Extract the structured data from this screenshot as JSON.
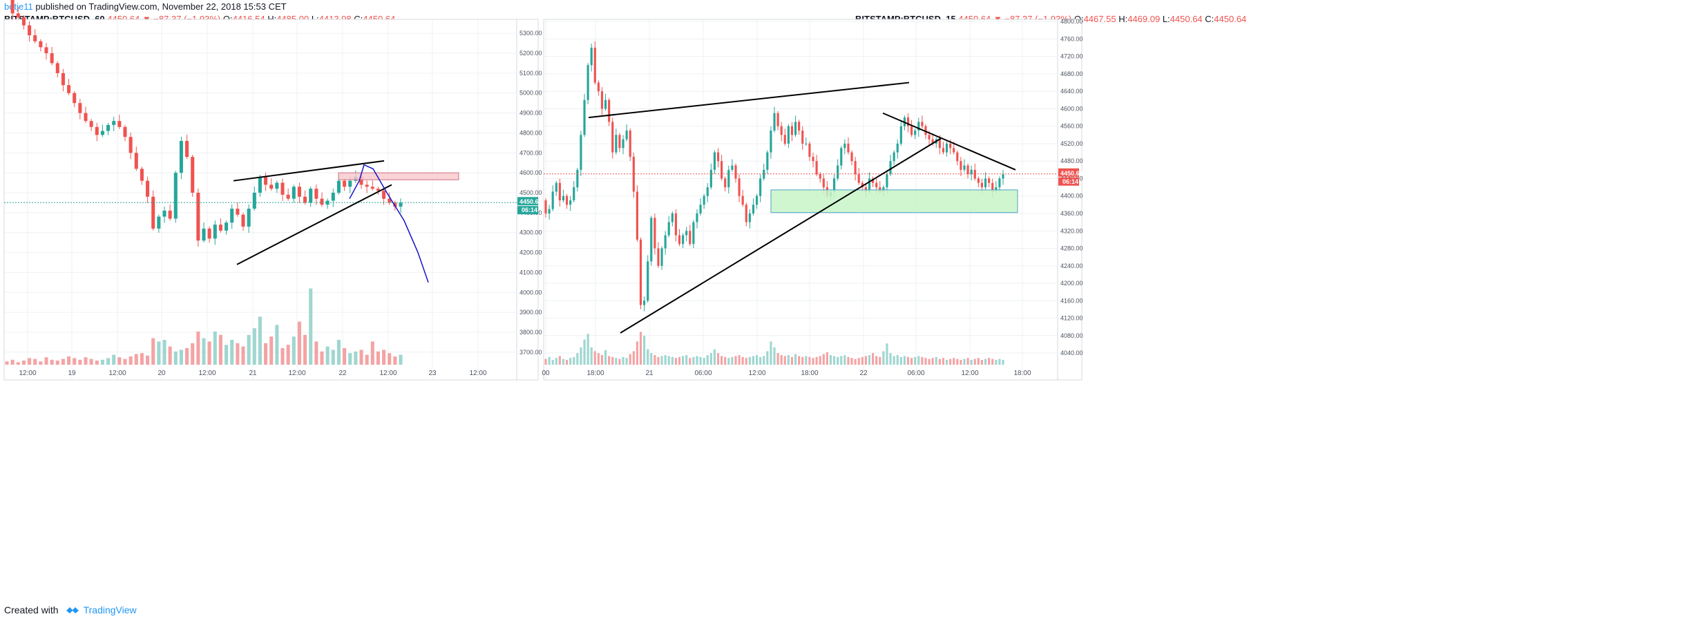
{
  "header": {
    "user": "botje11",
    "published": "published on TradingView.com, November 22, 2018 15:53 CET"
  },
  "footer": {
    "created_with": "Created with",
    "brand": "TradingView"
  },
  "colors": {
    "up": "#26a69a",
    "down": "#ef5350",
    "vol_up": "#9fd6d0",
    "vol_down": "#f4a3a4",
    "path": "#1414c8",
    "trendline": "#000000"
  },
  "chart_data": [
    {
      "type": "candlestick",
      "symbol": "BITSTAMP:BTCUSD, 60",
      "change": "4450.64 ▼ −87.37 (−1.93%)",
      "ohlc": {
        "O": "4416.54",
        "H": "4485.00",
        "L": "4413.98",
        "C": "4450.64"
      },
      "last_price": "4450.64",
      "countdown": "06:14",
      "ylim": [
        3630,
        5370
      ],
      "y_ticks": [
        "5300.00",
        "5200.00",
        "5100.00",
        "5000.00",
        "4900.00",
        "4800.00",
        "4700.00",
        "4600.00",
        "4500.00",
        "4400.00",
        "4300.00",
        "4200.00",
        "4100.00",
        "4000.00",
        "3900.00",
        "3800.00",
        "3700.00"
      ],
      "x_ticks": [
        "12:00",
        "19",
        "12:00",
        "20",
        "12:00",
        "21",
        "12:00",
        "22",
        "12:00",
        "23",
        "12:00"
      ],
      "price_open": 5560,
      "closes": [
        5500,
        5400,
        5380,
        5340,
        5290,
        5260,
        5230,
        5200,
        5150,
        5100,
        5040,
        5000,
        4950,
        4900,
        4860,
        4830,
        4790,
        4810,
        4840,
        4860,
        4830,
        4780,
        4700,
        4620,
        4560,
        4480,
        4320,
        4380,
        4410,
        4370,
        4600,
        4760,
        4680,
        4500,
        4260,
        4320,
        4270,
        4340,
        4310,
        4350,
        4420,
        4390,
        4330,
        4420,
        4500,
        4580,
        4540,
        4520,
        4550,
        4490,
        4470,
        4530,
        4480,
        4450,
        4520,
        4470,
        4440,
        4460,
        4500,
        4560,
        4530,
        4560,
        4580,
        4540,
        4530,
        4520,
        4510,
        4470,
        4450,
        4430,
        4450
      ],
      "volume_level": [
        0.4,
        0.6,
        0.3,
        0.5,
        0.8,
        0.7,
        0.4,
        0.9,
        0.6,
        0.5,
        0.7,
        1.0,
        0.8,
        0.6,
        0.9,
        0.7,
        0.5,
        0.6,
        0.8,
        1.2,
        0.9,
        0.7,
        1.0,
        1.3,
        1.4,
        1.1,
        3.2,
        2.8,
        3.0,
        2.2,
        1.6,
        1.8,
        2.0,
        2.6,
        4.0,
        3.2,
        2.8,
        4.0,
        3.6,
        2.4,
        3.0,
        2.6,
        2.2,
        3.6,
        4.4,
        5.8,
        2.6,
        3.4,
        4.8,
        2.0,
        2.4,
        3.4,
        5.2,
        3.6,
        9.2,
        2.8,
        1.6,
        2.2,
        1.8,
        3.0,
        2.0,
        1.4,
        1.6,
        1.8,
        1.2,
        2.8,
        1.6,
        1.8,
        1.4,
        1.0,
        1.2
      ],
      "annotations": {
        "resistance_zone": [
          4565,
          4600
        ],
        "trend_upper": [
          [
            4560,
            4660
          ]
        ],
        "trend_lower": [
          [
            4140,
            4540
          ]
        ],
        "projection": [
          4470,
          4560,
          4640,
          4620,
          4500,
          4360,
          4200,
          4050
        ]
      }
    },
    {
      "type": "candlestick",
      "symbol": "BITSTAMP:BTCUSD, 15",
      "change": "4450.64 ▼ −87.37 (−1.93%)",
      "ohlc": {
        "O": "4467.55",
        "H": "4469.09",
        "L": "4450.64",
        "C": "4450.64"
      },
      "last_price": "4450.64",
      "countdown": "06:14",
      "ylim": [
        4010,
        4805
      ],
      "y_ticks": [
        "4800.00",
        "4760.00",
        "4720.00",
        "4680.00",
        "4640.00",
        "4600.00",
        "4560.00",
        "4520.00",
        "4480.00",
        "4440.00",
        "4400.00",
        "4360.00",
        "4320.00",
        "4280.00",
        "4240.00",
        "4200.00",
        "4160.00",
        "4120.00",
        "4080.00",
        "4040.00"
      ],
      "x_ticks": [
        "00",
        "18:00",
        "21",
        "06:00",
        "12:00",
        "18:00",
        "22",
        "06:00",
        "12:00",
        "18:00"
      ],
      "price_open": 4390,
      "closes": [
        4360,
        4370,
        4410,
        4430,
        4390,
        4400,
        4380,
        4390,
        4420,
        4460,
        4540,
        4620,
        4700,
        4740,
        4660,
        4640,
        4600,
        4620,
        4570,
        4500,
        4540,
        4510,
        4530,
        4550,
        4490,
        4410,
        4300,
        4150,
        4160,
        4250,
        4350,
        4280,
        4240,
        4280,
        4310,
        4340,
        4360,
        4310,
        4290,
        4310,
        4320,
        4290,
        4340,
        4360,
        4380,
        4400,
        4420,
        4460,
        4500,
        4480,
        4440,
        4420,
        4460,
        4470,
        4440,
        4400,
        4380,
        4340,
        4360,
        4380,
        4400,
        4440,
        4460,
        4500,
        4550,
        4590,
        4560,
        4540,
        4520,
        4560,
        4540,
        4570,
        4550,
        4520,
        4520,
        4490,
        4480,
        4450,
        4440,
        4420,
        4400,
        4410,
        4440,
        4470,
        4510,
        4520,
        4500,
        4480,
        4450,
        4430,
        4420,
        4410,
        4440,
        4430,
        4420,
        4410,
        4420,
        4450,
        4480,
        4500,
        4520,
        4560,
        4580,
        4560,
        4540,
        4550,
        4570,
        4560,
        4540,
        4530,
        4520,
        4530,
        4510,
        4500,
        4520,
        4510,
        4500,
        4480,
        4460,
        4470,
        4450,
        4460,
        4440,
        4430,
        4420,
        4440,
        4430,
        4410,
        4420,
        4440,
        4450
      ],
      "volume_level": [
        0.6,
        0.8,
        0.5,
        0.7,
        0.9,
        0.6,
        0.5,
        0.7,
        0.8,
        1.2,
        1.8,
        2.6,
        3.2,
        1.8,
        1.4,
        1.2,
        1.0,
        1.5,
        0.9,
        0.8,
        0.7,
        0.6,
        0.8,
        0.7,
        1.1,
        1.4,
        2.4,
        3.4,
        3.0,
        1.6,
        1.2,
        1.0,
        0.8,
        0.9,
        1.0,
        0.9,
        0.8,
        0.7,
        0.8,
        0.9,
        1.0,
        0.7,
        0.8,
        0.9,
        0.8,
        0.7,
        1.0,
        1.2,
        1.6,
        1.2,
        0.9,
        0.8,
        0.7,
        0.8,
        0.9,
        1.0,
        0.8,
        0.7,
        0.8,
        0.9,
        1.0,
        0.8,
        0.9,
        1.4,
        2.4,
        1.8,
        1.2,
        1.0,
        0.9,
        1.0,
        0.8,
        1.1,
        0.9,
        0.8,
        0.9,
        0.8,
        0.7,
        0.8,
        0.9,
        1.1,
        1.3,
        1.0,
        0.9,
        0.8,
        0.9,
        1.0,
        0.8,
        0.7,
        0.6,
        0.7,
        0.8,
        0.9,
        1.0,
        1.2,
        0.9,
        0.8,
        1.4,
        2.2,
        1.2,
        0.9,
        1.0,
        0.8,
        0.9,
        0.8,
        0.7,
        0.8,
        0.9,
        0.8,
        0.7,
        0.6,
        0.7,
        0.8,
        0.6,
        0.7,
        0.5,
        0.6,
        0.7,
        0.6,
        0.5,
        0.6,
        0.7,
        0.5,
        0.6,
        0.7,
        0.5,
        0.6,
        0.7,
        0.6,
        0.5,
        0.6,
        0.5
      ],
      "annotations": {
        "support_zone": [
          4362,
          4414
        ],
        "trend_upper": [
          4580,
          4660
        ],
        "trend_lower": [
          4086,
          4532
        ],
        "trend_desc": [
          4590,
          4460
        ]
      }
    }
  ]
}
